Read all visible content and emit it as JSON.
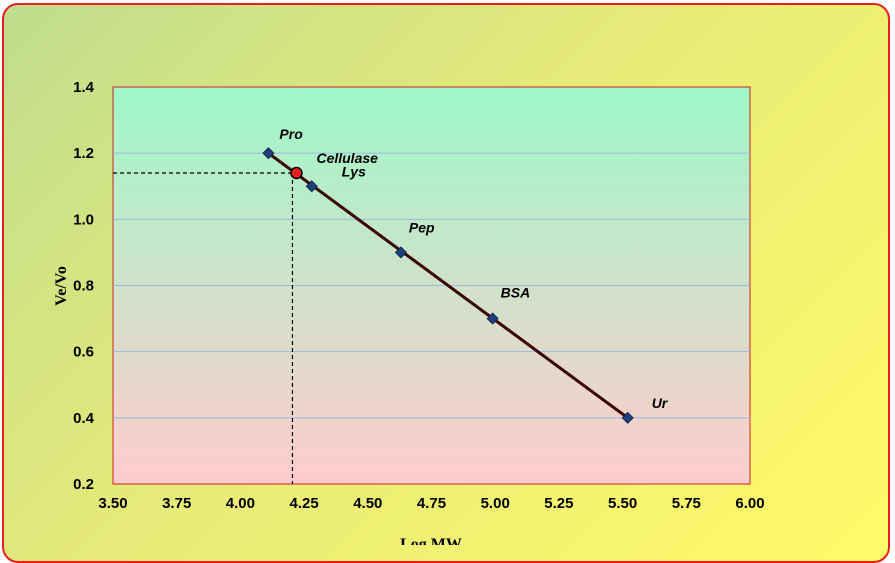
{
  "chart_data": {
    "type": "scatter",
    "xlabel": "Log  MW",
    "ylabel": "Ve/Vo",
    "xlim": [
      3.5,
      6.0
    ],
    "ylim": [
      0.2,
      1.4
    ],
    "xticks": [
      "3.50",
      "3.75",
      "4.00",
      "4.25",
      "4.50",
      "4.75",
      "5.00",
      "5.25",
      "5.50",
      "5.75",
      "6.00"
    ],
    "yticks": [
      "0.2",
      "0.4",
      "0.6",
      "0.8",
      "1.0",
      "1.2",
      "1.4"
    ],
    "grid": "horizontal",
    "points": [
      {
        "label": "Pro",
        "x": 4.11,
        "y": 1.2
      },
      {
        "label": "Lys",
        "x": 4.28,
        "y": 1.1
      },
      {
        "label": "Pep",
        "x": 4.63,
        "y": 0.9
      },
      {
        "label": "BSA",
        "x": 4.99,
        "y": 0.7
      },
      {
        "label": "Ur",
        "x": 5.52,
        "y": 0.4
      }
    ],
    "trendline": {
      "from": {
        "x": 4.11,
        "y": 1.2
      },
      "to": {
        "x": 5.52,
        "y": 0.4
      }
    },
    "unknown": {
      "label": "Cellulase",
      "x": 4.22,
      "y": 1.14
    },
    "colors": {
      "line": "#3a0000",
      "marker": "#1f3f7a",
      "unknown_marker": "#e8201c",
      "grid": "#9db8e6",
      "plot_top": "#9ff8c8",
      "plot_bottom": "#ffcccc",
      "frame_border": "#e8201c"
    }
  }
}
